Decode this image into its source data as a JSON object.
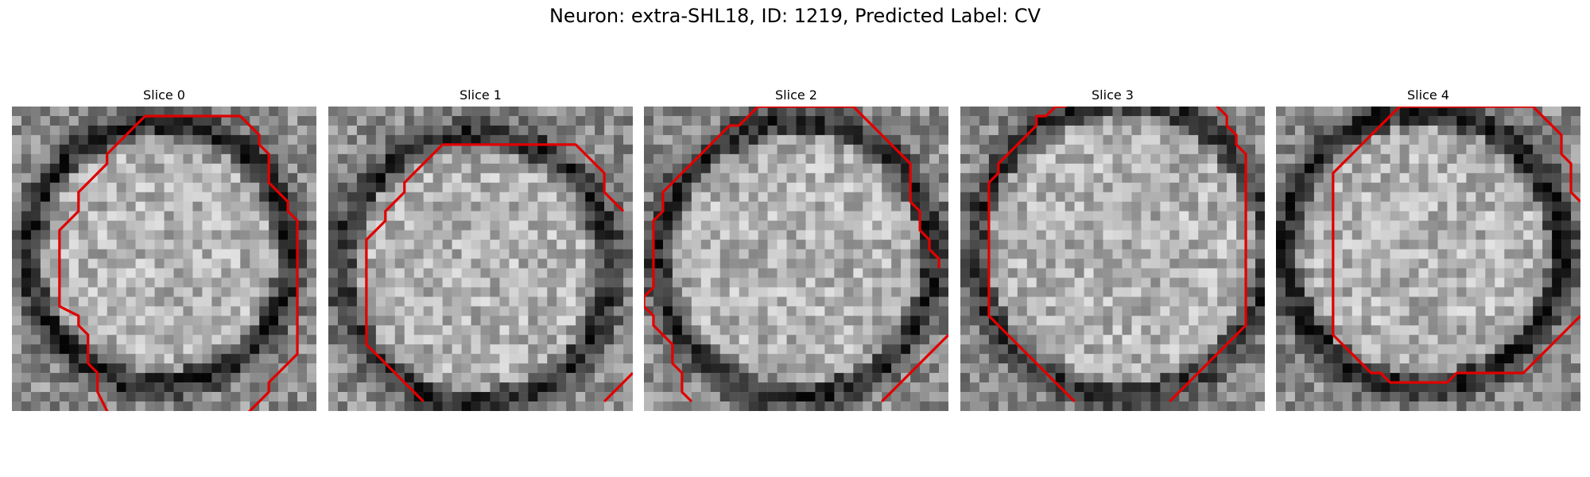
{
  "figure": {
    "title": "Neuron: extra-SHL18, ID: 1219, Predicted Label: CV"
  },
  "grid": 32,
  "contour_color": "#e00000",
  "slices": [
    {
      "title": "Slice 0",
      "seed": 11,
      "dark_ring": {
        "cx": 15.5,
        "cy": 15.5,
        "r": 13.8,
        "depth": 0.42
      },
      "contours": [
        [
          [
            2,
            32
          ],
          [
            1,
            31
          ],
          [
            0,
            29
          ],
          [
            0,
            27
          ],
          [
            -1,
            26
          ],
          [
            -1,
            25
          ],
          [
            -1,
            24
          ],
          [
            -1,
            23
          ],
          [
            -2,
            22
          ],
          [
            -2,
            21
          ],
          [
            -4,
            20
          ],
          [
            -4,
            12
          ],
          [
            -3,
            11
          ],
          [
            -2,
            10
          ],
          [
            -2,
            8
          ],
          [
            -1,
            7
          ],
          [
            0,
            6
          ],
          [
            1,
            5
          ],
          [
            1,
            4
          ],
          [
            2,
            3
          ],
          [
            3,
            2
          ],
          [
            4,
            1
          ],
          [
            5,
            0
          ],
          [
            15,
            0
          ],
          [
            16,
            1
          ],
          [
            17,
            2
          ],
          [
            17,
            3
          ],
          [
            18,
            4
          ],
          [
            18,
            7
          ],
          [
            19,
            8
          ],
          [
            20,
            9
          ],
          [
            20,
            10
          ],
          [
            21,
            11
          ],
          [
            21,
            25
          ],
          [
            20,
            26
          ],
          [
            19,
            27
          ],
          [
            18,
            28
          ],
          [
            18,
            29
          ],
          [
            17,
            30
          ],
          [
            16,
            31
          ],
          [
            15,
            32
          ],
          [
            14,
            33
          ],
          [
            11,
            33
          ],
          [
            10,
            34
          ]
        ]
      ],
      "offset": [
        9,
        1
      ]
    },
    {
      "title": "Slice 1",
      "seed": 23,
      "dark_ring": {
        "cx": 15.5,
        "cy": 17.0,
        "r": 14.2,
        "depth": 0.38
      },
      "contours": [
        [
          [
            10,
            31
          ],
          [
            9,
            30
          ],
          [
            8,
            29
          ],
          [
            7,
            28
          ],
          [
            6,
            27
          ],
          [
            5,
            26
          ],
          [
            4,
            25
          ],
          [
            4,
            14
          ],
          [
            5,
            13
          ],
          [
            6,
            12
          ],
          [
            6,
            11
          ],
          [
            7,
            10
          ],
          [
            8,
            9
          ],
          [
            8,
            8
          ],
          [
            9,
            7
          ],
          [
            10,
            6
          ],
          [
            11,
            5
          ],
          [
            12,
            4
          ],
          [
            26,
            4
          ],
          [
            27,
            5
          ],
          [
            28,
            6
          ],
          [
            29,
            7
          ],
          [
            29,
            9
          ],
          [
            30,
            10
          ],
          [
            31,
            11
          ]
        ],
        [
          [
            29,
            31
          ],
          [
            30,
            30
          ],
          [
            31,
            29
          ],
          [
            32,
            28
          ]
        ]
      ],
      "offset": [
        0,
        0
      ]
    },
    {
      "title": "Slice 2",
      "seed": 37,
      "dark_ring": {
        "cx": 16.0,
        "cy": 16.0,
        "r": 14.5,
        "depth": 0.4
      },
      "contours": [
        [
          [
            5,
            31
          ],
          [
            4,
            30
          ],
          [
            4,
            28
          ],
          [
            3,
            27
          ],
          [
            3,
            25
          ],
          [
            2,
            24
          ],
          [
            1,
            23
          ],
          [
            1,
            22
          ],
          [
            0,
            21
          ],
          [
            0,
            20
          ],
          [
            1,
            19
          ],
          [
            1,
            12
          ],
          [
            2,
            11
          ],
          [
            2,
            9
          ],
          [
            3,
            8
          ],
          [
            4,
            7
          ],
          [
            5,
            6
          ],
          [
            6,
            5
          ],
          [
            7,
            4
          ],
          [
            8,
            3
          ],
          [
            9,
            2
          ],
          [
            10,
            2
          ],
          [
            11,
            1
          ],
          [
            12,
            0
          ],
          [
            22,
            0
          ],
          [
            23,
            1
          ],
          [
            24,
            2
          ],
          [
            25,
            3
          ],
          [
            26,
            4
          ],
          [
            27,
            5
          ],
          [
            28,
            6
          ],
          [
            28,
            10
          ],
          [
            29,
            11
          ],
          [
            29,
            13
          ],
          [
            30,
            14
          ],
          [
            30,
            15
          ],
          [
            31,
            16
          ],
          [
            31,
            17
          ]
        ],
        [
          [
            25,
            31
          ],
          [
            26,
            30
          ],
          [
            27,
            29
          ],
          [
            28,
            28
          ],
          [
            29,
            27
          ],
          [
            30,
            26
          ],
          [
            31,
            25
          ],
          [
            32,
            24
          ]
        ]
      ],
      "offset": [
        0,
        0
      ]
    },
    {
      "title": "Slice 3",
      "seed": 53,
      "dark_ring": {
        "cx": 17.0,
        "cy": 15.0,
        "r": 15.5,
        "depth": 0.35
      },
      "contours": [
        [
          [
            12,
            31
          ],
          [
            11,
            30
          ],
          [
            10,
            29
          ],
          [
            9,
            28
          ],
          [
            8,
            27
          ],
          [
            7,
            26
          ],
          [
            6,
            25
          ],
          [
            5,
            24
          ],
          [
            4,
            23
          ],
          [
            3,
            22
          ],
          [
            3,
            8
          ],
          [
            4,
            7
          ],
          [
            4,
            6
          ],
          [
            5,
            5
          ],
          [
            6,
            4
          ],
          [
            7,
            3
          ],
          [
            8,
            2
          ],
          [
            8,
            1
          ],
          [
            9,
            1
          ],
          [
            10,
            0
          ],
          [
            11,
            0
          ],
          [
            12,
            -1
          ]
        ],
        [
          [
            26,
            -1
          ],
          [
            27,
            0
          ],
          [
            28,
            1
          ],
          [
            28,
            2
          ],
          [
            29,
            3
          ],
          [
            29,
            4
          ],
          [
            30,
            5
          ],
          [
            30,
            23
          ],
          [
            29,
            24
          ],
          [
            28,
            25
          ],
          [
            27,
            26
          ],
          [
            26,
            27
          ],
          [
            25,
            28
          ],
          [
            24,
            29
          ],
          [
            23,
            30
          ],
          [
            22,
            31
          ]
        ]
      ],
      "offset": [
        0,
        0
      ]
    },
    {
      "title": "Slice 4",
      "seed": 71,
      "dark_ring": {
        "cx": 15.5,
        "cy": 15.0,
        "r": 14.6,
        "depth": 0.45
      },
      "contours": [
        [
          [
            6,
            0
          ],
          [
            20,
            0
          ],
          [
            21,
            1
          ],
          [
            22,
            2
          ],
          [
            23,
            3
          ],
          [
            23,
            5
          ],
          [
            24,
            6
          ],
          [
            24,
            9
          ],
          [
            25,
            10
          ]
        ],
        [
          [
            25,
            22
          ],
          [
            24,
            23
          ],
          [
            23,
            24
          ],
          [
            22,
            25
          ],
          [
            21,
            26
          ],
          [
            20,
            27
          ],
          [
            19,
            28
          ],
          [
            12,
            28
          ],
          [
            11,
            29
          ],
          [
            5,
            29
          ],
          [
            4,
            28
          ],
          [
            3,
            28
          ],
          [
            2,
            27
          ],
          [
            1,
            26
          ],
          [
            0,
            25
          ],
          [
            -1,
            24
          ],
          [
            -1,
            23
          ],
          [
            -1,
            7
          ],
          [
            0,
            6
          ],
          [
            1,
            5
          ],
          [
            2,
            4
          ],
          [
            3,
            3
          ],
          [
            4,
            2
          ],
          [
            5,
            1
          ],
          [
            6,
            0
          ]
        ]
      ],
      "offset": [
        7,
        0
      ]
    }
  ]
}
